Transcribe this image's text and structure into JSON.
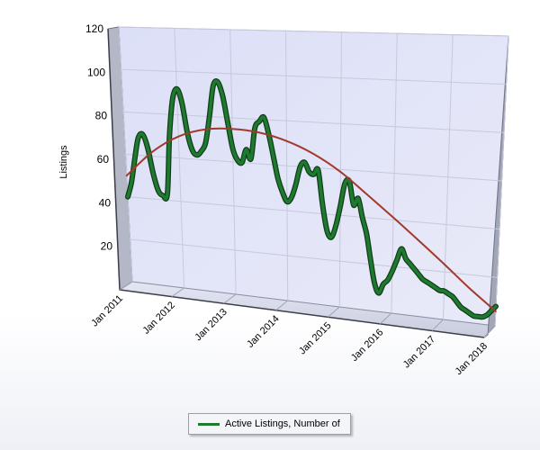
{
  "chart_data": {
    "type": "line",
    "ylabel": "Listings",
    "ylim": [
      0,
      120
    ],
    "y_ticks": [
      20,
      40,
      60,
      80,
      100,
      120
    ],
    "x_ticks": [
      "Jan 2011",
      "Jan 2012",
      "Jan 2013",
      "Jan 2014",
      "Jan 2015",
      "Jan 2016",
      "Jan 2017",
      "Jan 2018"
    ],
    "x_start": "2011-01",
    "x_end": "2018-01",
    "grid": true,
    "legend_position": "bottom-center",
    "series": [
      {
        "name": "Active Listings, Number of",
        "color": "#1e7a2e",
        "x": [
          "2011-01",
          "2011-02",
          "2011-03",
          "2011-04",
          "2011-05",
          "2011-06",
          "2011-07",
          "2011-08",
          "2011-09",
          "2011-10",
          "2011-11",
          "2011-12",
          "2012-01",
          "2012-02",
          "2012-03",
          "2012-04",
          "2012-05",
          "2012-06",
          "2012-07",
          "2012-08",
          "2012-09",
          "2012-10",
          "2012-11",
          "2012-12",
          "2013-01",
          "2013-02",
          "2013-03",
          "2013-04",
          "2013-05",
          "2013-06",
          "2013-07",
          "2013-08",
          "2013-09",
          "2013-10",
          "2013-11",
          "2013-12",
          "2014-01",
          "2014-02",
          "2014-03",
          "2014-04",
          "2014-05",
          "2014-06",
          "2014-07",
          "2014-08",
          "2014-09",
          "2014-10",
          "2014-11",
          "2014-12",
          "2015-01",
          "2015-02",
          "2015-03",
          "2015-04",
          "2015-05",
          "2015-06",
          "2015-07",
          "2015-08",
          "2015-09",
          "2015-10",
          "2015-11",
          "2015-12",
          "2016-01",
          "2016-02",
          "2016-03",
          "2016-04",
          "2016-05",
          "2016-06",
          "2016-07",
          "2016-08",
          "2016-09",
          "2016-10",
          "2016-11",
          "2016-12",
          "2017-01",
          "2017-02",
          "2017-03",
          "2017-04",
          "2017-05",
          "2017-06",
          "2017-07",
          "2017-08",
          "2017-09",
          "2017-10",
          "2017-11",
          "2017-12",
          "2018-01"
        ],
        "y": [
          40,
          47,
          58,
          68,
          70,
          64,
          52,
          44,
          42,
          43,
          70,
          87,
          92,
          86,
          72,
          64,
          62,
          64,
          68,
          80,
          94,
          96,
          90,
          78,
          66,
          61,
          60,
          66,
          62,
          76,
          79,
          81,
          74,
          64,
          54,
          48,
          44,
          46,
          52,
          60,
          62,
          58,
          57,
          59,
          44,
          33,
          30,
          35,
          44,
          54,
          55,
          45,
          48,
          40,
          33,
          22,
          12,
          8,
          12,
          14,
          18,
          23,
          28,
          24,
          22,
          20,
          18,
          16,
          15,
          14,
          13,
          12,
          12,
          11,
          10,
          8,
          6,
          5,
          4,
          3,
          3,
          3,
          4,
          6,
          8
        ]
      },
      {
        "name": "",
        "color": "#a23a2c",
        "x": [
          "2011-01",
          "2011-07",
          "2012-01",
          "2012-07",
          "2013-01",
          "2013-07",
          "2014-01",
          "2014-07",
          "2015-01",
          "2015-07",
          "2016-01",
          "2016-07",
          "2017-01",
          "2017-07",
          "2018-01"
        ],
        "y": [
          50,
          62,
          70,
          74,
          75,
          74,
          71,
          66,
          59,
          50,
          41,
          32,
          23,
          14,
          6
        ]
      }
    ]
  },
  "legend": {
    "label": "Active Listings, Number of"
  }
}
